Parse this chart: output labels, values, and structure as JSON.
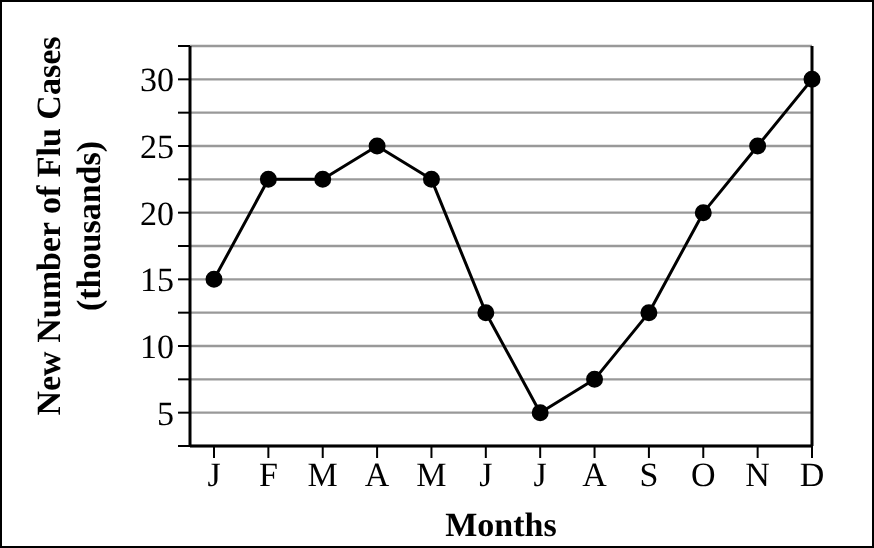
{
  "chart_data": {
    "type": "line",
    "xlabel": "Months",
    "ylabel": "New Number of Flu Cases (thousands)",
    "categories": [
      "J",
      "F",
      "M",
      "A",
      "M",
      "J",
      "J",
      "A",
      "S",
      "O",
      "N",
      "D"
    ],
    "series": [
      {
        "color": "#000000",
        "values": [
          15,
          22.5,
          22.5,
          25,
          22.5,
          12.5,
          5,
          7.5,
          12.5,
          20,
          25,
          30
        ]
      }
    ],
    "ylim": [
      2.5,
      32.5
    ],
    "yticks": [
      {
        "value": 2.5,
        "label": null
      },
      5,
      {
        "value": 7.5,
        "label": null
      },
      10,
      {
        "value": 12.5,
        "label": null
      },
      15,
      {
        "value": 17.5,
        "label": null
      },
      20,
      {
        "value": 22.5,
        "label": null
      },
      25,
      {
        "value": 27.5,
        "label": null
      },
      30,
      {
        "value": 32.5,
        "label": null
      }
    ],
    "grid": "y",
    "marker": "circle",
    "line_style": "solid",
    "legend": false
  }
}
